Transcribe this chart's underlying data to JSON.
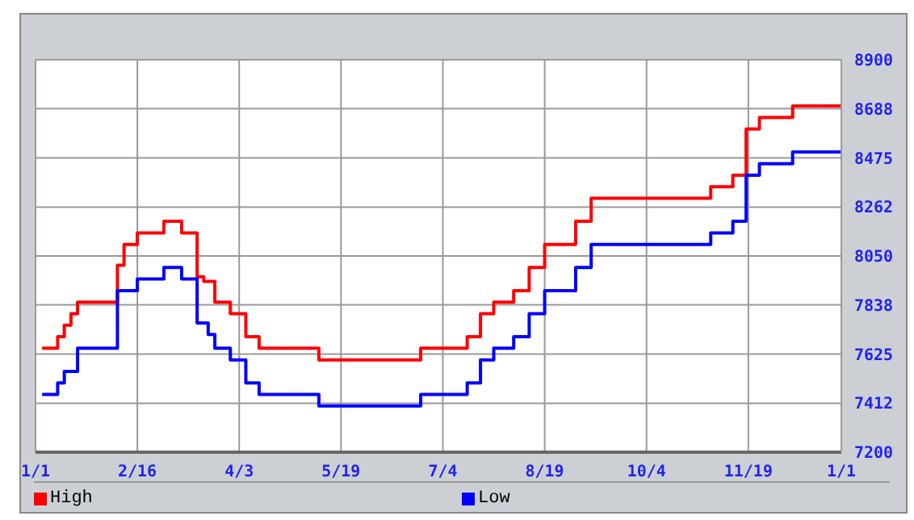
{
  "chart_data": {
    "type": "step",
    "xlim": [
      "--01-01",
      "--12-31"
    ],
    "xticks": [
      {
        "value": "--01-01",
        "label": "1/1"
      },
      {
        "value": "--02-16",
        "label": "2/16"
      },
      {
        "value": "--04-03",
        "label": "4/3"
      },
      {
        "value": "--05-19",
        "label": "5/19"
      },
      {
        "value": "--07-04",
        "label": "7/4"
      },
      {
        "value": "--08-19",
        "label": "8/19"
      },
      {
        "value": "--10-04",
        "label": "10/4"
      },
      {
        "value": "--11-19",
        "label": "11/19"
      },
      {
        "value": "--12-31",
        "label": "1/1"
      }
    ],
    "ylim": [
      7200,
      8900
    ],
    "yticks": [
      7200,
      7412,
      7625,
      7838,
      8050,
      8262,
      8475,
      8688,
      8900
    ],
    "grid": true,
    "legend": "bottom",
    "marker": "none",
    "line_style": "solid",
    "series": [
      {
        "name": "High",
        "color": "#ff0000",
        "x": [
          "--01-04",
          "--01-11",
          "--01-14",
          "--01-17",
          "--01-20",
          "--02-07",
          "--02-10",
          "--02-16",
          "--02-28",
          "--03-08",
          "--03-15",
          "--03-18",
          "--03-23",
          "--03-30",
          "--04-06",
          "--04-12",
          "--05-09",
          "--06-24",
          "--07-15",
          "--07-21",
          "--07-27",
          "--08-05",
          "--08-12",
          "--08-19",
          "--09-02",
          "--09-09",
          "--11-02",
          "--11-12",
          "--11-18",
          "--11-24",
          "--12-09",
          "--12-31"
        ],
        "values": [
          7650,
          7700,
          7750,
          7800,
          7850,
          8010,
          8100,
          8150,
          8200,
          8150,
          7960,
          7940,
          7850,
          7800,
          7700,
          7650,
          7600,
          7650,
          7700,
          7800,
          7850,
          7900,
          8000,
          8100,
          8200,
          8300,
          8350,
          8400,
          8600,
          8650,
          8700,
          8700
        ]
      },
      {
        "name": "Low",
        "color": "#0000ff",
        "x": [
          "--01-04",
          "--01-11",
          "--01-14",
          "--01-20",
          "--02-07",
          "--02-16",
          "--02-28",
          "--03-08",
          "--03-15",
          "--03-20",
          "--03-23",
          "--03-30",
          "--04-06",
          "--04-12",
          "--05-09",
          "--06-24",
          "--07-15",
          "--07-21",
          "--07-27",
          "--08-05",
          "--08-12",
          "--08-19",
          "--09-02",
          "--09-09",
          "--11-02",
          "--11-12",
          "--11-18",
          "--11-24",
          "--12-09",
          "--12-31"
        ],
        "values": [
          7450,
          7500,
          7550,
          7650,
          7900,
          7950,
          8000,
          7950,
          7760,
          7710,
          7650,
          7600,
          7500,
          7450,
          7400,
          7450,
          7500,
          7600,
          7650,
          7700,
          7800,
          7900,
          8000,
          8100,
          8150,
          8200,
          8400,
          8450,
          8500,
          8500
        ]
      }
    ]
  }
}
